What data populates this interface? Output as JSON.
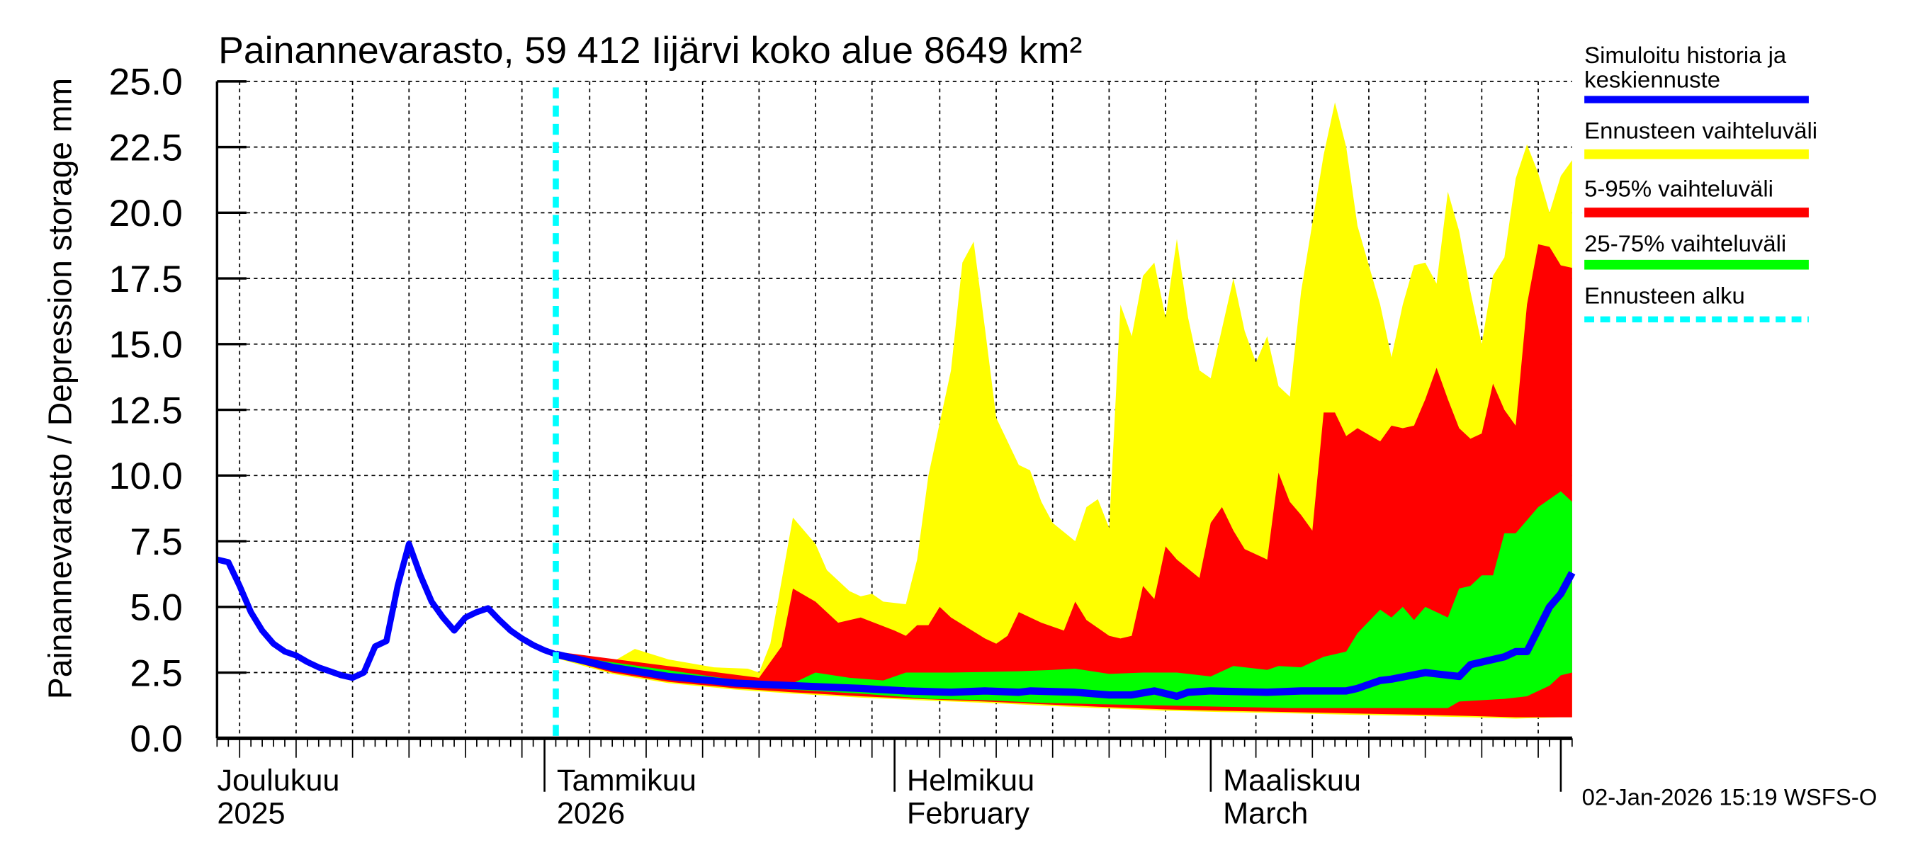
{
  "chart_data": {
    "type": "area",
    "title": "Painannevarasto, 59 412 Iijärvi koko alue 8649 km²",
    "ylabel": "Painannevarasto / Depression storage    mm",
    "xlim": [
      "2025-12-03",
      "2026-04-02"
    ],
    "ylim": [
      0,
      25
    ],
    "grid": true,
    "legend_position": "right",
    "yticks": [
      "0.0",
      "2.5",
      "5.0",
      "7.5",
      "10.0",
      "12.5",
      "15.0",
      "17.5",
      "20.0",
      "22.5",
      "25.0"
    ],
    "xtick_labels": [
      {
        "date": "2025-12-01",
        "line1": "Joulukuu",
        "line2": "2025"
      },
      {
        "date": "2026-01-01",
        "line1": "Tammikuu",
        "line2": "2026"
      },
      {
        "date": "2026-02-01",
        "line1": "Helmikuu",
        "line2": "February"
      },
      {
        "date": "2026-03-01",
        "line1": "Maaliskuu",
        "line2": "March"
      }
    ],
    "forecast_start": "2026-01-02",
    "colors": {
      "history": "#0000ff",
      "range": "#ffff00",
      "p5_95": "#ff0000",
      "p25_75": "#00ff00",
      "forecast_start": "#00ffff"
    },
    "legend": [
      {
        "label_lines": [
          "Simuloitu historia ja",
          "keskiennuste"
        ],
        "color": "#0000ff",
        "style": "solid"
      },
      {
        "label_lines": [
          "Ennusteen vaihteluväli"
        ],
        "color": "#ffff00",
        "style": "solid"
      },
      {
        "label_lines": [
          "5-95% vaihteluväli"
        ],
        "color": "#ff0000",
        "style": "solid"
      },
      {
        "label_lines": [
          "25-75% vaihteluväli"
        ],
        "color": "#00ff00",
        "style": "solid"
      },
      {
        "label_lines": [
          "Ennusteen alku"
        ],
        "color": "#00ffff",
        "style": "dashed"
      }
    ],
    "series": {
      "history": [
        [
          "2025-12-03",
          6.8
        ],
        [
          "2025-12-04",
          6.7
        ],
        [
          "2025-12-05",
          5.8
        ],
        [
          "2025-12-06",
          4.8
        ],
        [
          "2025-12-07",
          4.1
        ],
        [
          "2025-12-08",
          3.6
        ],
        [
          "2025-12-09",
          3.3
        ],
        [
          "2025-12-10",
          3.15
        ],
        [
          "2025-12-11",
          2.9
        ],
        [
          "2025-12-12",
          2.7
        ],
        [
          "2025-12-13",
          2.55
        ],
        [
          "2025-12-14",
          2.4
        ],
        [
          "2025-12-15",
          2.3
        ],
        [
          "2025-12-16",
          2.5
        ],
        [
          "2025-12-17",
          3.5
        ],
        [
          "2025-12-18",
          3.7
        ],
        [
          "2025-12-19",
          5.8
        ],
        [
          "2025-12-20",
          7.4
        ],
        [
          "2025-12-21",
          6.2
        ],
        [
          "2025-12-22",
          5.2
        ],
        [
          "2025-12-23",
          4.6
        ],
        [
          "2025-12-24",
          4.1
        ],
        [
          "2025-12-25",
          4.6
        ],
        [
          "2025-12-26",
          4.8
        ],
        [
          "2025-12-27",
          4.95
        ],
        [
          "2025-12-28",
          4.5
        ],
        [
          "2025-12-29",
          4.1
        ],
        [
          "2025-12-30",
          3.8
        ],
        [
          "2025-12-31",
          3.55
        ],
        [
          "2026-01-01",
          3.35
        ],
        [
          "2026-01-02",
          3.2
        ]
      ],
      "median": [
        [
          "2026-01-02",
          3.2
        ],
        [
          "2026-01-07",
          2.7
        ],
        [
          "2026-01-12",
          2.35
        ],
        [
          "2026-01-18",
          2.1
        ],
        [
          "2026-01-23",
          2.0
        ],
        [
          "2026-01-29",
          1.9
        ],
        [
          "2026-02-02",
          1.8
        ],
        [
          "2026-02-06",
          1.75
        ],
        [
          "2026-02-09",
          1.8
        ],
        [
          "2026-02-12",
          1.75
        ],
        [
          "2026-02-13",
          1.8
        ],
        [
          "2026-02-17",
          1.75
        ],
        [
          "2026-02-20",
          1.65
        ],
        [
          "2026-02-22",
          1.65
        ],
        [
          "2026-02-24",
          1.8
        ],
        [
          "2026-02-26",
          1.6
        ],
        [
          "2026-02-27",
          1.75
        ],
        [
          "2026-03-01",
          1.8
        ],
        [
          "2026-03-06",
          1.75
        ],
        [
          "2026-03-09",
          1.8
        ],
        [
          "2026-03-13",
          1.8
        ],
        [
          "2026-03-14",
          1.9
        ],
        [
          "2026-03-16",
          2.2
        ],
        [
          "2026-03-17",
          2.25
        ],
        [
          "2026-03-20",
          2.5
        ],
        [
          "2026-03-23",
          2.35
        ],
        [
          "2026-03-24",
          2.8
        ],
        [
          "2026-03-27",
          3.1
        ],
        [
          "2026-03-28",
          3.3
        ],
        [
          "2026-03-29",
          3.3
        ],
        [
          "2026-03-31",
          5.0
        ],
        [
          "2026-04-01",
          5.5
        ],
        [
          "2026-04-02",
          6.3
        ]
      ],
      "range_max": [
        [
          "2026-01-02",
          3.3
        ],
        [
          "2026-01-07",
          2.9
        ],
        [
          "2026-01-09",
          3.4
        ],
        [
          "2026-01-12",
          3.0
        ],
        [
          "2026-01-16",
          2.7
        ],
        [
          "2026-01-19",
          2.65
        ],
        [
          "2026-01-20",
          2.5
        ],
        [
          "2026-01-21",
          3.6
        ],
        [
          "2026-01-23",
          8.4
        ],
        [
          "2026-01-25",
          7.4
        ],
        [
          "2026-01-26",
          6.4
        ],
        [
          "2026-01-28",
          5.6
        ],
        [
          "2026-01-29",
          5.4
        ],
        [
          "2026-01-30",
          5.5
        ],
        [
          "2026-01-31",
          5.2
        ],
        [
          "2026-02-02",
          5.1
        ],
        [
          "2026-02-03",
          6.8
        ],
        [
          "2026-02-04",
          10.0
        ],
        [
          "2026-02-06",
          14.0
        ],
        [
          "2026-02-07",
          18.1
        ],
        [
          "2026-02-08",
          18.9
        ],
        [
          "2026-02-09",
          15.6
        ],
        [
          "2026-02-10",
          12.2
        ],
        [
          "2026-02-12",
          10.4
        ],
        [
          "2026-02-13",
          10.2
        ],
        [
          "2026-02-14",
          9.0
        ],
        [
          "2026-02-15",
          8.2
        ],
        [
          "2026-02-17",
          7.5
        ],
        [
          "2026-02-18",
          8.8
        ],
        [
          "2026-02-19",
          9.1
        ],
        [
          "2026-02-20",
          8.0
        ],
        [
          "2026-02-21",
          16.5
        ],
        [
          "2026-02-22",
          15.3
        ],
        [
          "2026-02-23",
          17.6
        ],
        [
          "2026-02-24",
          18.1
        ],
        [
          "2026-02-25",
          16.0
        ],
        [
          "2026-02-26",
          19.0
        ],
        [
          "2026-02-27",
          16.0
        ],
        [
          "2026-02-28",
          14.0
        ],
        [
          "2026-03-01",
          13.7
        ],
        [
          "2026-03-03",
          17.5
        ],
        [
          "2026-03-04",
          15.5
        ],
        [
          "2026-03-05",
          14.3
        ],
        [
          "2026-03-06",
          15.3
        ],
        [
          "2026-03-07",
          13.4
        ],
        [
          "2026-03-08",
          13.0
        ],
        [
          "2026-03-09",
          17.0
        ],
        [
          "2026-03-11",
          22.2
        ],
        [
          "2026-03-12",
          24.2
        ],
        [
          "2026-03-13",
          22.5
        ],
        [
          "2026-03-14",
          19.5
        ],
        [
          "2026-03-16",
          16.5
        ],
        [
          "2026-03-17",
          14.5
        ],
        [
          "2026-03-18",
          16.5
        ],
        [
          "2026-03-19",
          18.0
        ],
        [
          "2026-03-20",
          18.1
        ],
        [
          "2026-03-21",
          17.3
        ],
        [
          "2026-03-22",
          20.8
        ],
        [
          "2026-03-23",
          19.3
        ],
        [
          "2026-03-24",
          17.0
        ],
        [
          "2026-03-25",
          15.0
        ],
        [
          "2026-03-26",
          17.6
        ],
        [
          "2026-03-27",
          18.3
        ],
        [
          "2026-03-28",
          21.3
        ],
        [
          "2026-03-29",
          22.6
        ],
        [
          "2026-03-30",
          21.5
        ],
        [
          "2026-03-31",
          20.0
        ],
        [
          "2026-04-01",
          21.4
        ],
        [
          "2026-04-02",
          22.0
        ]
      ],
      "range_min": [
        [
          "2026-01-02",
          3.05
        ],
        [
          "2026-01-07",
          2.45
        ],
        [
          "2026-01-12",
          2.1
        ],
        [
          "2026-01-18",
          1.85
        ],
        [
          "2026-01-23",
          1.7
        ],
        [
          "2026-01-29",
          1.55
        ],
        [
          "2026-02-03",
          1.45
        ],
        [
          "2026-02-09",
          1.35
        ],
        [
          "2026-02-14",
          1.25
        ],
        [
          "2026-02-19",
          1.15
        ],
        [
          "2026-02-25",
          1.05
        ],
        [
          "2026-03-02",
          1.0
        ],
        [
          "2026-03-08",
          0.95
        ],
        [
          "2026-03-13",
          0.9
        ],
        [
          "2026-03-19",
          0.85
        ],
        [
          "2026-03-24",
          0.8
        ],
        [
          "2026-03-28",
          0.75
        ],
        [
          "2026-04-01",
          0.8
        ],
        [
          "2026-04-02",
          0.8
        ]
      ],
      "p95": [
        [
          "2026-01-02",
          3.3
        ],
        [
          "2026-01-20",
          2.3
        ],
        [
          "2026-01-22",
          3.5
        ],
        [
          "2026-01-23",
          5.7
        ],
        [
          "2026-01-25",
          5.2
        ],
        [
          "2026-01-27",
          4.4
        ],
        [
          "2026-01-29",
          4.6
        ],
        [
          "2026-02-01",
          4.1
        ],
        [
          "2026-02-02",
          3.9
        ],
        [
          "2026-02-03",
          4.3
        ],
        [
          "2026-02-04",
          4.3
        ],
        [
          "2026-02-05",
          5.0
        ],
        [
          "2026-02-06",
          4.6
        ],
        [
          "2026-02-09",
          3.8
        ],
        [
          "2026-02-10",
          3.6
        ],
        [
          "2026-02-11",
          3.9
        ],
        [
          "2026-02-12",
          4.8
        ],
        [
          "2026-02-14",
          4.4
        ],
        [
          "2026-02-16",
          4.1
        ],
        [
          "2026-02-17",
          5.2
        ],
        [
          "2026-02-18",
          4.5
        ],
        [
          "2026-02-20",
          3.9
        ],
        [
          "2026-02-21",
          3.8
        ],
        [
          "2026-02-22",
          3.9
        ],
        [
          "2026-02-23",
          5.8
        ],
        [
          "2026-02-24",
          5.3
        ],
        [
          "2026-02-25",
          7.3
        ],
        [
          "2026-02-26",
          6.8
        ],
        [
          "2026-02-28",
          6.1
        ],
        [
          "2026-03-01",
          8.2
        ],
        [
          "2026-03-02",
          8.8
        ],
        [
          "2026-03-03",
          7.9
        ],
        [
          "2026-03-04",
          7.2
        ],
        [
          "2026-03-06",
          6.8
        ],
        [
          "2026-03-07",
          10.1
        ],
        [
          "2026-03-08",
          9.0
        ],
        [
          "2026-03-09",
          8.5
        ],
        [
          "2026-03-10",
          7.9
        ],
        [
          "2026-03-11",
          12.4
        ],
        [
          "2026-03-12",
          12.4
        ],
        [
          "2026-03-13",
          11.5
        ],
        [
          "2026-03-14",
          11.8
        ],
        [
          "2026-03-16",
          11.3
        ],
        [
          "2026-03-17",
          11.9
        ],
        [
          "2026-03-18",
          11.8
        ],
        [
          "2026-03-19",
          11.9
        ],
        [
          "2026-03-20",
          12.9
        ],
        [
          "2026-03-21",
          14.1
        ],
        [
          "2026-03-22",
          12.9
        ],
        [
          "2026-03-23",
          11.8
        ],
        [
          "2026-03-24",
          11.4
        ],
        [
          "2026-03-25",
          11.6
        ],
        [
          "2026-03-26",
          13.5
        ],
        [
          "2026-03-27",
          12.5
        ],
        [
          "2026-03-28",
          11.9
        ],
        [
          "2026-03-29",
          16.5
        ],
        [
          "2026-03-30",
          18.8
        ],
        [
          "2026-03-31",
          18.7
        ],
        [
          "2026-04-01",
          18.0
        ],
        [
          "2026-04-02",
          17.9
        ]
      ],
      "p5": [
        [
          "2026-01-02",
          3.1
        ],
        [
          "2026-01-07",
          2.5
        ],
        [
          "2026-01-12",
          2.15
        ],
        [
          "2026-01-18",
          1.9
        ],
        [
          "2026-01-23",
          1.75
        ],
        [
          "2026-01-29",
          1.6
        ],
        [
          "2026-02-03",
          1.5
        ],
        [
          "2026-02-09",
          1.4
        ],
        [
          "2026-02-14",
          1.3
        ],
        [
          "2026-02-19",
          1.2
        ],
        [
          "2026-02-25",
          1.1
        ],
        [
          "2026-03-02",
          1.05
        ],
        [
          "2026-03-08",
          1.0
        ],
        [
          "2026-03-13",
          0.95
        ],
        [
          "2026-03-19",
          0.9
        ],
        [
          "2026-03-24",
          0.85
        ],
        [
          "2026-03-28",
          0.8
        ],
        [
          "2026-04-02",
          0.8
        ]
      ],
      "p75": [
        [
          "2026-01-02",
          3.2
        ],
        [
          "2026-01-20",
          2.1
        ],
        [
          "2026-01-23",
          2.1
        ],
        [
          "2026-01-25",
          2.5
        ],
        [
          "2026-01-28",
          2.3
        ],
        [
          "2026-01-31",
          2.2
        ],
        [
          "2026-02-02",
          2.5
        ],
        [
          "2026-02-06",
          2.5
        ],
        [
          "2026-02-12",
          2.55
        ],
        [
          "2026-02-15",
          2.6
        ],
        [
          "2026-02-17",
          2.65
        ],
        [
          "2026-02-20",
          2.45
        ],
        [
          "2026-02-23",
          2.5
        ],
        [
          "2026-02-26",
          2.5
        ],
        [
          "2026-03-01",
          2.35
        ],
        [
          "2026-03-03",
          2.75
        ],
        [
          "2026-03-06",
          2.6
        ],
        [
          "2026-03-07",
          2.75
        ],
        [
          "2026-03-09",
          2.7
        ],
        [
          "2026-03-11",
          3.1
        ],
        [
          "2026-03-13",
          3.3
        ],
        [
          "2026-03-14",
          4.0
        ],
        [
          "2026-03-16",
          4.9
        ],
        [
          "2026-03-17",
          4.6
        ],
        [
          "2026-03-18",
          5.0
        ],
        [
          "2026-03-19",
          4.5
        ],
        [
          "2026-03-20",
          5.0
        ],
        [
          "2026-03-22",
          4.6
        ],
        [
          "2026-03-23",
          5.7
        ],
        [
          "2026-03-24",
          5.8
        ],
        [
          "2026-03-25",
          6.2
        ],
        [
          "2026-03-26",
          6.2
        ],
        [
          "2026-03-27",
          7.8
        ],
        [
          "2026-03-28",
          7.8
        ],
        [
          "2026-03-30",
          8.8
        ],
        [
          "2026-04-01",
          9.4
        ],
        [
          "2026-04-02",
          9.0
        ]
      ],
      "p25": [
        [
          "2026-01-02",
          3.2
        ],
        [
          "2026-01-18",
          2.0
        ],
        [
          "2026-01-23",
          1.85
        ],
        [
          "2026-01-29",
          1.7
        ],
        [
          "2026-02-04",
          1.5
        ],
        [
          "2026-02-09",
          1.45
        ],
        [
          "2026-02-14",
          1.35
        ],
        [
          "2026-02-19",
          1.3
        ],
        [
          "2026-02-25",
          1.25
        ],
        [
          "2026-03-02",
          1.2
        ],
        [
          "2026-03-08",
          1.15
        ],
        [
          "2026-03-13",
          1.15
        ],
        [
          "2026-03-16",
          1.15
        ],
        [
          "2026-03-22",
          1.15
        ],
        [
          "2026-03-23",
          1.4
        ],
        [
          "2026-03-25",
          1.45
        ],
        [
          "2026-03-27",
          1.5
        ],
        [
          "2026-03-29",
          1.6
        ],
        [
          "2026-03-31",
          2.0
        ],
        [
          "2026-04-01",
          2.4
        ],
        [
          "2026-04-02",
          2.5
        ]
      ]
    }
  },
  "footer": "02-Jan-2026 15:19 WSFS-O"
}
